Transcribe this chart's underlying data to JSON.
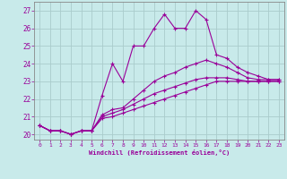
{
  "xlabel": "Windchill (Refroidissement éolien,°C)",
  "bg_color": "#c8eaea",
  "line_color": "#990099",
  "grid_color": "#aacccc",
  "x_ticks": [
    0,
    1,
    2,
    3,
    4,
    5,
    6,
    7,
    8,
    9,
    10,
    11,
    12,
    13,
    14,
    15,
    16,
    17,
    18,
    19,
    20,
    21,
    22,
    23
  ],
  "ylim": [
    19.7,
    27.5
  ],
  "xlim": [
    -0.5,
    23.5
  ],
  "yticks": [
    20,
    21,
    22,
    23,
    24,
    25,
    26,
    27
  ],
  "series_x": [
    [
      0,
      1,
      2,
      3,
      4,
      5,
      6,
      7,
      8,
      9,
      10,
      11,
      12,
      13,
      14,
      15,
      16,
      17,
      18,
      19,
      20,
      21,
      22,
      23
    ],
    [
      0,
      1,
      2,
      3,
      4,
      5,
      6,
      7,
      8,
      9,
      10,
      11,
      12,
      13,
      14,
      15,
      16,
      17,
      18,
      19,
      20,
      21,
      22,
      23
    ],
    [
      0,
      1,
      2,
      3,
      4,
      5,
      6,
      7,
      8,
      9,
      10,
      11,
      12,
      13,
      14,
      15,
      16,
      17,
      18,
      19,
      20,
      21,
      22,
      23
    ],
    [
      0,
      1,
      2,
      3,
      4,
      5,
      6,
      7,
      8,
      9,
      10,
      11,
      12,
      13,
      14,
      15,
      16,
      17,
      18,
      19,
      20,
      21,
      22,
      23
    ]
  ],
  "series_y": [
    [
      20.5,
      20.2,
      20.2,
      20.0,
      20.2,
      20.2,
      22.2,
      24.0,
      23.0,
      25.0,
      25.0,
      26.0,
      26.8,
      26.0,
      26.0,
      27.0,
      26.5,
      24.5,
      24.3,
      23.8,
      23.5,
      23.3,
      23.1,
      23.1
    ],
    [
      20.5,
      20.2,
      20.2,
      20.0,
      20.2,
      20.2,
      21.1,
      21.4,
      21.5,
      22.0,
      22.5,
      23.0,
      23.3,
      23.5,
      23.8,
      24.0,
      24.2,
      24.0,
      23.8,
      23.5,
      23.2,
      23.1,
      23.1,
      23.1
    ],
    [
      20.5,
      20.2,
      20.2,
      20.0,
      20.2,
      20.2,
      21.0,
      21.2,
      21.4,
      21.7,
      22.0,
      22.3,
      22.5,
      22.7,
      22.9,
      23.1,
      23.2,
      23.2,
      23.2,
      23.1,
      23.0,
      23.0,
      23.0,
      23.0
    ],
    [
      20.5,
      20.2,
      20.2,
      20.0,
      20.2,
      20.2,
      20.9,
      21.0,
      21.2,
      21.4,
      21.6,
      21.8,
      22.0,
      22.2,
      22.4,
      22.6,
      22.8,
      23.0,
      23.0,
      23.0,
      23.0,
      23.0,
      23.0,
      23.0
    ]
  ]
}
